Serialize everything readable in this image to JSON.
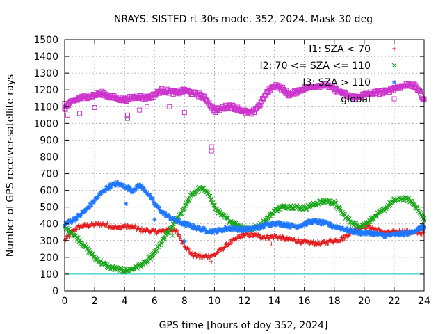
{
  "chart_data": {
    "type": "scatter",
    "title": "NRAYS. SISTED rt 30s mode. 352, 2024. Mask 30 deg",
    "xlabel": "GPS time [hours of doy 352, 2024]",
    "ylabel": "Number of GPS receiver-satellite rays",
    "xlim": [
      0,
      24
    ],
    "ylim": [
      0,
      1500
    ],
    "x_ticks": [
      0,
      2,
      4,
      6,
      8,
      10,
      12,
      14,
      16,
      18,
      20,
      22,
      24
    ],
    "y_ticks": [
      0,
      100,
      200,
      300,
      400,
      500,
      600,
      700,
      800,
      900,
      1000,
      1100,
      1200,
      1300,
      1400,
      1500
    ],
    "grid": true,
    "legend_position": "top-right",
    "reference_line": {
      "y": 100,
      "color": "#00c8c8"
    },
    "series": [
      {
        "name": "I1: SZA < 70",
        "marker": "+",
        "color": "#e41a1c",
        "x": [
          0,
          0.5,
          1,
          1.5,
          2,
          2.5,
          3,
          3.5,
          4,
          4.5,
          5,
          5.5,
          6,
          6.5,
          7,
          7.5,
          8,
          8.5,
          9,
          9.5,
          10,
          10.5,
          11,
          11.5,
          12,
          12.5,
          13,
          13.5,
          14,
          14.5,
          15,
          15.5,
          16,
          16.5,
          17,
          17.5,
          18,
          18.5,
          19,
          19.5,
          20,
          20.5,
          21,
          21.5,
          22,
          22.5,
          23,
          23.5,
          24
        ],
        "values": [
          300,
          355,
          385,
          390,
          395,
          400,
          390,
          375,
          385,
          380,
          365,
          360,
          355,
          355,
          370,
          350,
          275,
          215,
          205,
          205,
          215,
          250,
          285,
          315,
          335,
          335,
          325,
          320,
          325,
          315,
          305,
          300,
          290,
          285,
          285,
          290,
          300,
          310,
          340,
          375,
          385,
          375,
          360,
          345,
          350,
          355,
          350,
          345,
          350
        ],
        "outliers": [
          {
            "x": 9.8,
            "y": 175
          },
          {
            "x": 13.2,
            "y": 320
          },
          {
            "x": 13.8,
            "y": 280
          }
        ]
      },
      {
        "name": "I2: 70 <= SZA <= 110",
        "marker": "x",
        "color": "#16a616",
        "x": [
          0,
          0.5,
          1,
          1.5,
          2,
          2.5,
          3,
          3.5,
          4,
          4.5,
          5,
          5.5,
          6,
          6.5,
          7,
          7.5,
          8,
          8.5,
          9,
          9.5,
          10,
          10.5,
          11,
          11.5,
          12,
          12.5,
          13,
          13.5,
          14,
          14.5,
          15,
          15.5,
          16,
          16.5,
          17,
          17.5,
          18,
          18.5,
          19,
          19.5,
          20,
          20.5,
          21,
          21.5,
          22,
          22.5,
          23,
          23.5,
          24
        ],
        "values": [
          380,
          345,
          300,
          250,
          200,
          165,
          140,
          130,
          120,
          130,
          150,
          175,
          225,
          295,
          360,
          430,
          500,
          575,
          610,
          600,
          500,
          450,
          420,
          395,
          375,
          370,
          390,
          430,
          480,
          500,
          505,
          500,
          495,
          510,
          530,
          535,
          525,
          470,
          420,
          390,
          395,
          430,
          460,
          500,
          540,
          550,
          545,
          500,
          420
        ],
        "outliers": [
          {
            "x": 7.2,
            "y": 330
          }
        ]
      },
      {
        "name": "I3: SZA > 110",
        "marker": "*",
        "color": "#1f77ff",
        "x": [
          0,
          0.5,
          1,
          1.5,
          2,
          2.5,
          3,
          3.5,
          4,
          4.5,
          5,
          5.5,
          6,
          6.5,
          7,
          7.5,
          8,
          8.5,
          9,
          9.5,
          10,
          10.5,
          11,
          11.5,
          12,
          12.5,
          13,
          13.5,
          14,
          14.5,
          15,
          15.5,
          16,
          16.5,
          17,
          17.5,
          18,
          18.5,
          19,
          19.5,
          20,
          20.5,
          21,
          21.5,
          22,
          22.5,
          23,
          23.5,
          24
        ],
        "values": [
          400,
          420,
          450,
          490,
          540,
          590,
          625,
          640,
          625,
          600,
          630,
          590,
          520,
          470,
          440,
          415,
          400,
          385,
          370,
          360,
          355,
          365,
          375,
          370,
          365,
          370,
          380,
          395,
          405,
          400,
          390,
          385,
          400,
          415,
          410,
          400,
          385,
          375,
          360,
          350,
          345,
          345,
          335,
          330,
          335,
          340,
          345,
          365,
          380
        ],
        "outliers": [
          {
            "x": 4.1,
            "y": 520
          },
          {
            "x": 6.0,
            "y": 425
          },
          {
            "x": 8.0,
            "y": 295
          }
        ]
      },
      {
        "name": "global",
        "marker": "square",
        "color": "#cc33cc",
        "x": [
          0,
          0.5,
          1,
          1.5,
          2,
          2.5,
          3,
          3.5,
          4,
          4.5,
          5,
          5.5,
          6,
          6.5,
          7,
          7.5,
          8,
          8.5,
          9,
          9.5,
          10,
          10.5,
          11,
          11.5,
          12,
          12.5,
          13,
          13.5,
          14,
          14.5,
          15,
          15.5,
          16,
          16.5,
          17,
          17.5,
          18,
          18.5,
          19,
          19.5,
          20,
          20.5,
          21,
          21.5,
          22,
          22.5,
          23,
          23.5,
          24
        ],
        "values": [
          1090,
          1130,
          1150,
          1160,
          1170,
          1180,
          1160,
          1150,
          1140,
          1155,
          1160,
          1150,
          1170,
          1200,
          1190,
          1180,
          1200,
          1180,
          1170,
          1140,
          1075,
          1090,
          1105,
          1090,
          1070,
          1060,
          1110,
          1180,
          1230,
          1210,
          1170,
          1190,
          1210,
          1220,
          1225,
          1230,
          1200,
          1185,
          1160,
          1155,
          1170,
          1180,
          1185,
          1190,
          1210,
          1220,
          1235,
          1215,
          1140
        ],
        "outliers": [
          {
            "x": 0,
            "y": 1120
          },
          {
            "x": 0.2,
            "y": 1050
          },
          {
            "x": 1,
            "y": 1060
          },
          {
            "x": 2,
            "y": 1095
          },
          {
            "x": 4.2,
            "y": 1030
          },
          {
            "x": 4.2,
            "y": 1050
          },
          {
            "x": 5,
            "y": 1080
          },
          {
            "x": 5.5,
            "y": 1100
          },
          {
            "x": 7,
            "y": 1100
          },
          {
            "x": 8,
            "y": 1065
          },
          {
            "x": 9.8,
            "y": 835
          },
          {
            "x": 9.8,
            "y": 860
          }
        ]
      }
    ]
  }
}
